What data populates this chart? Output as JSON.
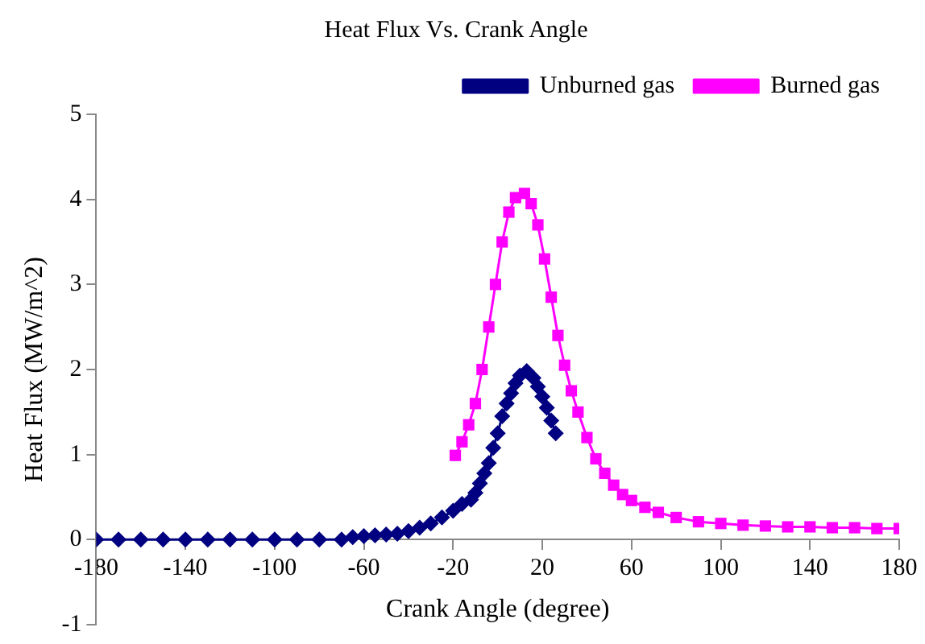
{
  "chart_data": {
    "type": "line",
    "title": "Heat Flux Vs. Crank Angle",
    "xlabel": "Crank Angle (degree)",
    "ylabel": "Heat Flux (MW/m^2)",
    "xlim": [
      -180,
      180
    ],
    "xticks": [
      -180,
      -140,
      -100,
      -60,
      -20,
      20,
      60,
      100,
      140,
      180
    ],
    "ylim": [
      -1,
      5
    ],
    "yticks": [
      -1,
      0,
      1,
      2,
      3,
      4,
      5
    ],
    "grid": false,
    "legend": "top right",
    "line_style": "solid",
    "series": [
      {
        "name": "Unburned gas",
        "color": "#000080",
        "marker": "diamond",
        "x": [
          -180,
          -170,
          -160,
          -150,
          -140,
          -130,
          -120,
          -110,
          -100,
          -90,
          -80,
          -70,
          -65,
          -60,
          -55,
          -50,
          -45,
          -40,
          -35,
          -30,
          -25,
          -20,
          -16,
          -12,
          -10,
          -8,
          -6,
          -4,
          -2,
          0,
          2,
          4,
          6,
          8,
          10,
          13,
          16,
          18,
          20,
          22,
          24,
          26
        ],
        "values": [
          0,
          0,
          0,
          0,
          0,
          0,
          0,
          0,
          0,
          0,
          0,
          0,
          0.03,
          0.04,
          0.05,
          0.06,
          0.07,
          0.1,
          0.14,
          0.19,
          0.26,
          0.34,
          0.42,
          0.47,
          0.55,
          0.66,
          0.78,
          0.9,
          1.08,
          1.25,
          1.45,
          1.6,
          1.72,
          1.84,
          1.93,
          1.98,
          1.9,
          1.8,
          1.68,
          1.55,
          1.4,
          1.25
        ]
      },
      {
        "name": "Burned gas",
        "color": "#ff00ff",
        "marker": "square",
        "x": [
          -19,
          -16,
          -13,
          -10,
          -7,
          -4,
          -1,
          2,
          5,
          8,
          12,
          15,
          18,
          21,
          24,
          27,
          30,
          33,
          36,
          40,
          44,
          48,
          52,
          56,
          60,
          66,
          72,
          80,
          90,
          100,
          110,
          120,
          130,
          140,
          150,
          160,
          170,
          180
        ],
        "values": [
          0.99,
          1.15,
          1.35,
          1.6,
          2.0,
          2.5,
          3.0,
          3.5,
          3.85,
          4.02,
          4.07,
          3.95,
          3.7,
          3.3,
          2.85,
          2.4,
          2.05,
          1.75,
          1.5,
          1.2,
          0.95,
          0.78,
          0.64,
          0.53,
          0.46,
          0.38,
          0.32,
          0.26,
          0.21,
          0.19,
          0.17,
          0.16,
          0.15,
          0.15,
          0.14,
          0.14,
          0.13,
          0.13
        ]
      }
    ]
  }
}
